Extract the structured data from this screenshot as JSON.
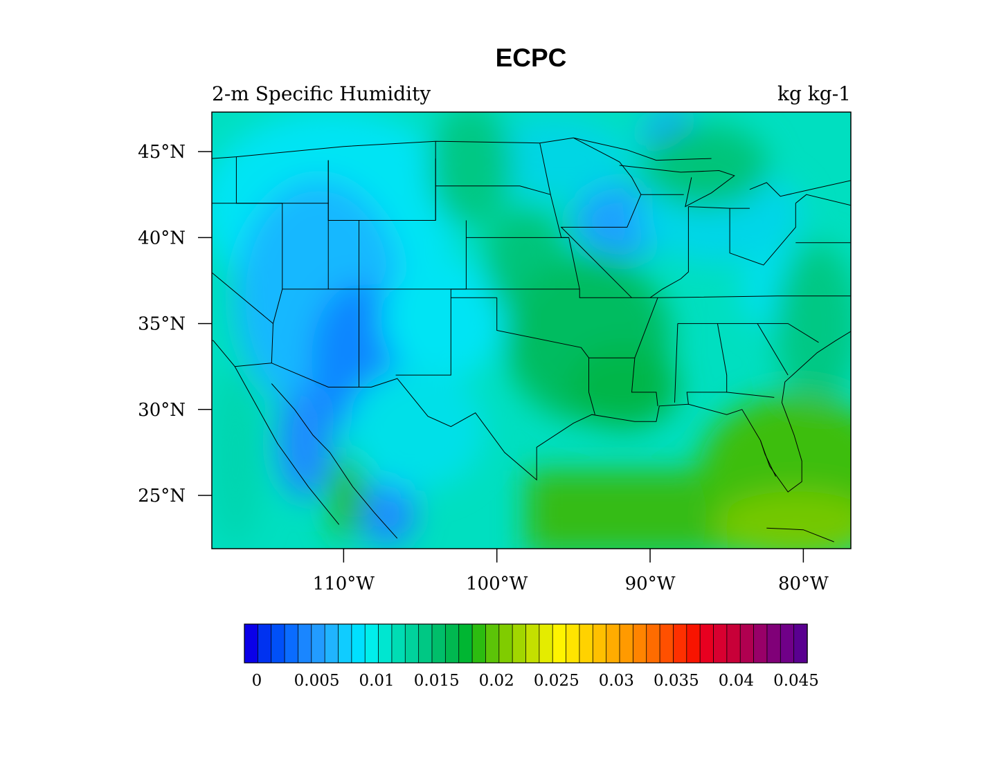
{
  "title": "ECPC",
  "left_string": "2-m Specific Humidity",
  "right_string": "kg kg-1",
  "map": {
    "region": "Contiguous United States",
    "projection": "cylindrical equidistant",
    "lat_range": [
      21.9,
      47.3
    ],
    "lon_range": [
      -118.6,
      -76.9
    ],
    "lat_ticks": [
      {
        "value": 25,
        "label": "25°N"
      },
      {
        "value": 30,
        "label": "30°N"
      },
      {
        "value": 35,
        "label": "35°N"
      },
      {
        "value": 40,
        "label": "40°N"
      },
      {
        "value": 45,
        "label": "45°N"
      }
    ],
    "lon_ticks": [
      {
        "value": -110,
        "label": "110°W"
      },
      {
        "value": -100,
        "label": "100°W"
      },
      {
        "value": -90,
        "label": "90°W"
      },
      {
        "value": -80,
        "label": "80°W"
      }
    ],
    "field": "2-m specific humidity",
    "observed_pattern": {
      "driest": "Great Basin, Arizona, Gulf of California region (~0.003-0.005)",
      "moistest": "Gulf of Mexico and Florida (~0.017-0.019)",
      "midwest_plains_corridor": "~0.013-0.015"
    }
  },
  "colorbar": {
    "min": 0,
    "max": 0.045,
    "interval": 0.001,
    "tick_labels": [
      "0",
      "0.005",
      "0.01",
      "0.015",
      "0.02",
      "0.025",
      "0.03",
      "0.035",
      "0.04",
      "0.045"
    ],
    "colors": [
      "#0a00e8",
      "#0032f0",
      "#0050f8",
      "#0a6cff",
      "#1a86ff",
      "#229cff",
      "#20b4ff",
      "#10ccff",
      "#00e0ff",
      "#00eeec",
      "#00e6d0",
      "#00dcb4",
      "#00d29c",
      "#00c884",
      "#00be6a",
      "#00b850",
      "#00b632",
      "#2cbc10",
      "#5cc408",
      "#80cc00",
      "#a2d600",
      "#c4e000",
      "#e4ec00",
      "#fff400",
      "#ffe400",
      "#ffd200",
      "#ffc000",
      "#ffac00",
      "#ff9a00",
      "#ff8400",
      "#ff6c00",
      "#ff5000",
      "#ff3000",
      "#f81400",
      "#e80020",
      "#d80030",
      "#c80038",
      "#b00050",
      "#980068",
      "#800078",
      "#700088",
      "#5a0090"
    ]
  }
}
